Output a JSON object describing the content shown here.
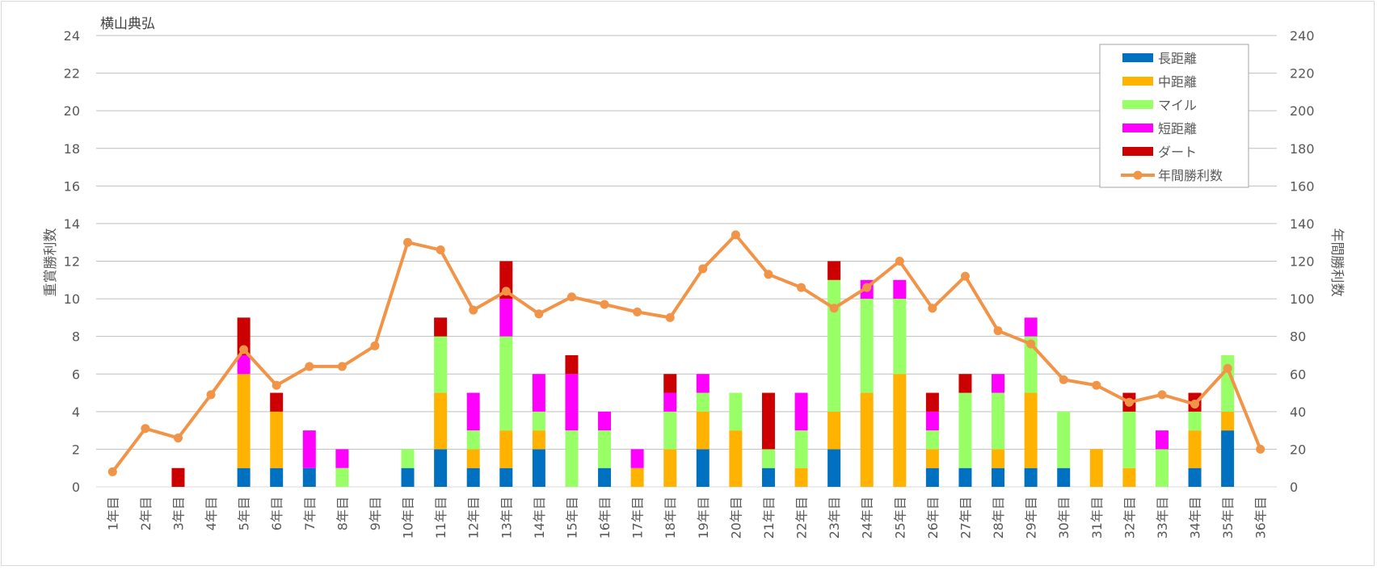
{
  "chart_data": {
    "type": "bar",
    "title": "横山典弘",
    "ylabel_left": "重賞勝利数",
    "ylabel_right": "年間勝利数",
    "ylim_left": [
      0,
      24
    ],
    "yticks_left": [
      "0",
      "2",
      "4",
      "6",
      "8",
      "10",
      "12",
      "14",
      "16",
      "18",
      "20",
      "22",
      "24"
    ],
    "ylim_right": [
      0,
      240
    ],
    "yticks_right": [
      "0",
      "20",
      "40",
      "60",
      "80",
      "100",
      "120",
      "140",
      "160",
      "180",
      "200",
      "220",
      "240"
    ],
    "grid": true,
    "legend_position": "top-right",
    "categories": [
      "1年目",
      "2年目",
      "3年目",
      "4年目",
      "5年目",
      "6年目",
      "7年目",
      "8年目",
      "9年目",
      "10年目",
      "11年目",
      "12年目",
      "13年目",
      "14年目",
      "15年目",
      "16年目",
      "17年目",
      "18年目",
      "19年目",
      "20年目",
      "21年目",
      "22年目",
      "23年目",
      "24年目",
      "25年目",
      "26年目",
      "27年目",
      "28年目",
      "29年目",
      "30年目",
      "31年目",
      "32年目",
      "33年目",
      "34年目",
      "35年目",
      "36年目"
    ],
    "series": [
      {
        "name": "長距離",
        "kind": "bar",
        "color": "#0070C0",
        "values": [
          0,
          0,
          0,
          0,
          1,
          1,
          1,
          0,
          0,
          1,
          2,
          1,
          1,
          2,
          0,
          1,
          0,
          0,
          2,
          0,
          1,
          0,
          2,
          0,
          0,
          1,
          1,
          1,
          1,
          1,
          0,
          0,
          0,
          1,
          3,
          0
        ]
      },
      {
        "name": "中距離",
        "kind": "bar",
        "color": "#FFB300",
        "values": [
          0,
          0,
          0,
          0,
          5,
          3,
          0,
          0,
          0,
          0,
          3,
          1,
          2,
          1,
          0,
          0,
          1,
          2,
          2,
          3,
          0,
          1,
          2,
          5,
          6,
          1,
          0,
          1,
          4,
          0,
          2,
          1,
          0,
          2,
          1,
          0
        ]
      },
      {
        "name": "マイル",
        "kind": "bar",
        "color": "#99FF66",
        "values": [
          0,
          0,
          0,
          0,
          0,
          0,
          0,
          1,
          0,
          1,
          3,
          1,
          5,
          1,
          3,
          2,
          0,
          2,
          1,
          2,
          1,
          2,
          7,
          5,
          4,
          1,
          4,
          3,
          3,
          3,
          0,
          3,
          2,
          1,
          3,
          0
        ]
      },
      {
        "name": "短距離",
        "kind": "bar",
        "color": "#FF00FF",
        "values": [
          0,
          0,
          0,
          0,
          1,
          0,
          2,
          1,
          0,
          0,
          0,
          2,
          2,
          2,
          3,
          1,
          1,
          1,
          1,
          0,
          0,
          2,
          0,
          1,
          1,
          1,
          0,
          1,
          1,
          0,
          0,
          0,
          1,
          0,
          0,
          0
        ]
      },
      {
        "name": "ダート",
        "kind": "bar",
        "color": "#CC0000",
        "values": [
          0,
          0,
          1,
          0,
          2,
          1,
          0,
          0,
          0,
          0,
          1,
          0,
          2,
          0,
          1,
          0,
          0,
          1,
          0,
          0,
          3,
          0,
          1,
          0,
          0,
          1,
          1,
          0,
          0,
          0,
          0,
          1,
          0,
          1,
          0,
          0
        ]
      },
      {
        "name": "年間勝利数",
        "kind": "line",
        "axis": "right",
        "color": "#F29447",
        "values": [
          8,
          31,
          26,
          49,
          73,
          54,
          64,
          64,
          75,
          130,
          126,
          94,
          104,
          92,
          101,
          97,
          93,
          90,
          116,
          134,
          113,
          106,
          95,
          106,
          120,
          95,
          112,
          83,
          76,
          57,
          54,
          45,
          49,
          44,
          63,
          20
        ]
      }
    ]
  }
}
